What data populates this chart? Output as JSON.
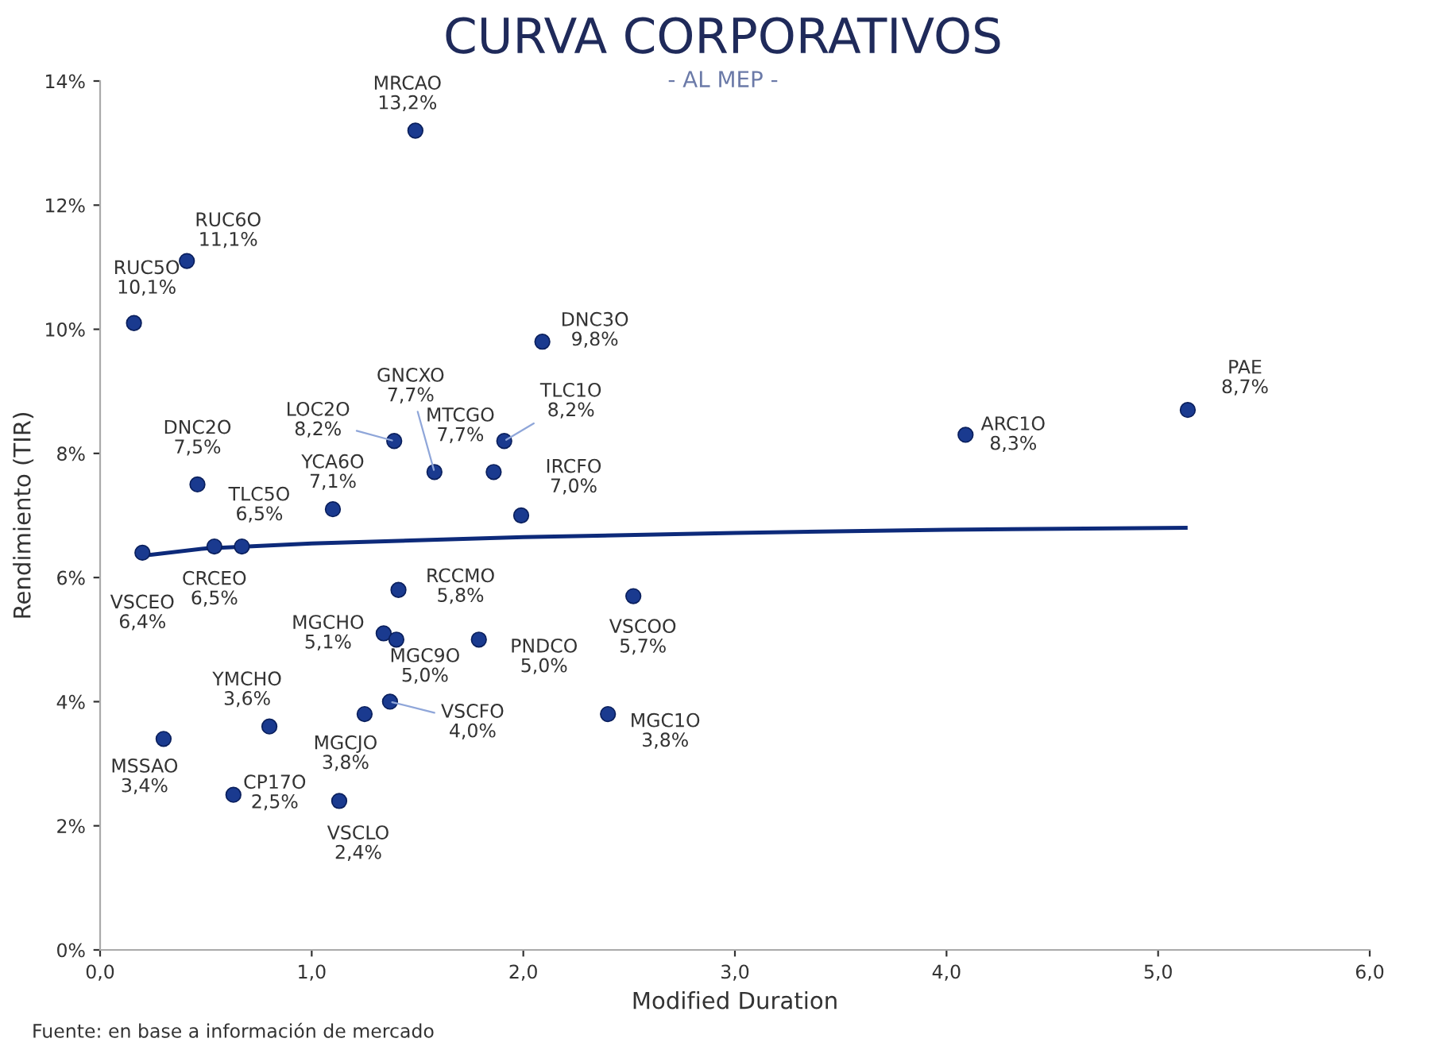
{
  "chart_data": {
    "type": "scatter",
    "title": "CURVA CORPORATIVOS",
    "subtitle": "- AL MEP -",
    "xlabel": "Modified Duration",
    "ylabel": "Rendimiento (TIR)",
    "xlim": [
      0,
      6
    ],
    "ylim": [
      0,
      14
    ],
    "xticks": [
      {
        "value": 0,
        "label": "0,0"
      },
      {
        "value": 1,
        "label": "1,0"
      },
      {
        "value": 2,
        "label": "2,0"
      },
      {
        "value": 3,
        "label": "3,0"
      },
      {
        "value": 4,
        "label": "4,0"
      },
      {
        "value": 5,
        "label": "5,0"
      },
      {
        "value": 6,
        "label": "6,0"
      }
    ],
    "yticks": [
      {
        "value": 0,
        "label": "0%"
      },
      {
        "value": 2,
        "label": "2%"
      },
      {
        "value": 4,
        "label": "4%"
      },
      {
        "value": 6,
        "label": "6%"
      },
      {
        "value": 8,
        "label": "8%"
      },
      {
        "value": 10,
        "label": "10%"
      },
      {
        "value": 12,
        "label": "12%"
      },
      {
        "value": 14,
        "label": "14%"
      }
    ],
    "grid": false,
    "legend": false,
    "series": [
      {
        "type": "scatter",
        "color": "#1a3a8f",
        "marker": "circle",
        "x": [
          1.49,
          0.41,
          0.16,
          2.09,
          5.14,
          4.09,
          1.58,
          1.39,
          1.86,
          1.91,
          0.46,
          1.1,
          1.99,
          0.67,
          0.54,
          0.2,
          1.41,
          2.52,
          1.34,
          1.4,
          1.79,
          0.8,
          1.37,
          1.25,
          2.4,
          0.3,
          0.63,
          1.13
        ],
        "values": [
          13.2,
          11.1,
          10.1,
          9.8,
          8.7,
          8.3,
          7.7,
          8.2,
          7.7,
          8.2,
          7.5,
          7.1,
          7.0,
          6.5,
          6.5,
          6.4,
          5.8,
          5.7,
          5.1,
          5.0,
          5.0,
          3.6,
          4.0,
          3.8,
          3.8,
          3.4,
          2.5,
          2.4
        ]
      },
      {
        "type": "line",
        "color": "#0d2a7a",
        "marker": "none",
        "line_style": "solid",
        "x": [
          0.2,
          0.5,
          1.0,
          2.0,
          3.0,
          4.0,
          5.13
        ],
        "values": [
          6.35,
          6.47,
          6.55,
          6.65,
          6.72,
          6.77,
          6.8
        ]
      }
    ],
    "annotations": [
      {
        "text": "MRCAO\n13,2%",
        "x": 1.49,
        "y": 13.2
      },
      {
        "text": "RUC6O\n11,1%",
        "x": 0.41,
        "y": 11.1
      },
      {
        "text": "RUC5O\n10,1%",
        "x": 0.16,
        "y": 10.1
      },
      {
        "text": "DNC3O\n9,8%",
        "x": 2.09,
        "y": 9.8
      },
      {
        "text": "PAE\n8,7%",
        "x": 5.14,
        "y": 8.7
      },
      {
        "text": "ARC1O\n8,3%",
        "x": 4.09,
        "y": 8.3
      },
      {
        "text": "GNCXO\n7,7%",
        "x": 1.58,
        "y": 7.7
      },
      {
        "text": "LOC2O\n8,2%",
        "x": 1.39,
        "y": 8.2
      },
      {
        "text": "MTCGO\n7,7%",
        "x": 1.86,
        "y": 7.7
      },
      {
        "text": "TLC1O\n8,2%",
        "x": 1.91,
        "y": 8.2
      },
      {
        "text": "DNC2O\n7,5%",
        "x": 0.46,
        "y": 7.5
      },
      {
        "text": "YCA6O\n7,1%",
        "x": 1.1,
        "y": 7.1
      },
      {
        "text": "IRCFO\n7,0%",
        "x": 1.99,
        "y": 7.0
      },
      {
        "text": "TLC5O\n6,5%",
        "x": 0.67,
        "y": 6.5
      },
      {
        "text": "CRCEO\n6,5%",
        "x": 0.54,
        "y": 6.5
      },
      {
        "text": "VSCEO\n6,4%",
        "x": 0.2,
        "y": 6.4
      },
      {
        "text": "RCCMO\n5,8%",
        "x": 1.41,
        "y": 5.8
      },
      {
        "text": "VSCOO\n5,7%",
        "x": 2.52,
        "y": 5.7
      },
      {
        "text": "MGCHO\n5,1%",
        "x": 1.34,
        "y": 5.1
      },
      {
        "text": "MGC9O\n5,0%",
        "x": 1.4,
        "y": 5.0
      },
      {
        "text": "PNDCO\n5,0%",
        "x": 1.79,
        "y": 5.0
      },
      {
        "text": "YMCHO\n3,6%",
        "x": 0.8,
        "y": 3.6
      },
      {
        "text": "VSCFO\n4,0%",
        "x": 1.37,
        "y": 4.0
      },
      {
        "text": "MGCJO\n3,8%",
        "x": 1.25,
        "y": 3.8
      },
      {
        "text": "MGC1O\n3,8%",
        "x": 2.4,
        "y": 3.8
      },
      {
        "text": "MSSAO\n3,4%",
        "x": 0.3,
        "y": 3.4
      },
      {
        "text": "CP17O\n2,5%",
        "x": 0.63,
        "y": 2.5
      },
      {
        "text": "VSCLO\n2,4%",
        "x": 1.13,
        "y": 2.4
      },
      "Fuente: en base a información de mercado"
    ]
  }
}
